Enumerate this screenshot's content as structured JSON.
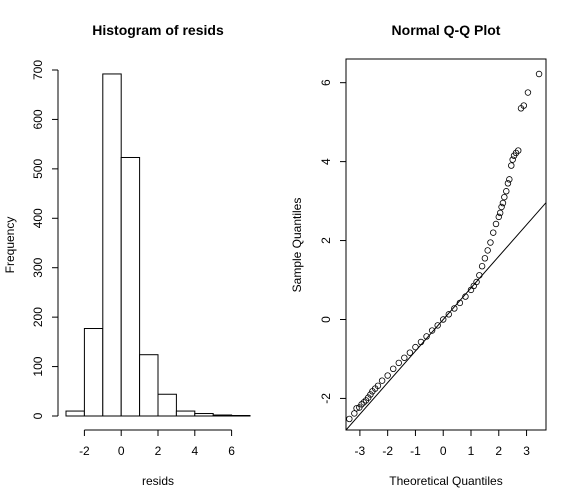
{
  "chart_data": [
    {
      "type": "histogram",
      "title": "Histogram of resids",
      "xlabel": "resids",
      "ylabel": "Frequency",
      "xlim": [
        -3,
        7
      ],
      "ylim": [
        0,
        700
      ],
      "xticks": [
        -2,
        0,
        2,
        4,
        6
      ],
      "yticks": [
        0,
        100,
        200,
        300,
        400,
        500,
        600,
        700
      ],
      "bins": [
        {
          "start": -3,
          "end": -2,
          "count": 10
        },
        {
          "start": -2,
          "end": -1,
          "count": 177
        },
        {
          "start": -1,
          "end": 0,
          "count": 692
        },
        {
          "start": 0,
          "end": 1,
          "count": 523
        },
        {
          "start": 1,
          "end": 2,
          "count": 124
        },
        {
          "start": 2,
          "end": 3,
          "count": 44
        },
        {
          "start": 3,
          "end": 4,
          "count": 10
        },
        {
          "start": 4,
          "end": 5,
          "count": 5
        },
        {
          "start": 5,
          "end": 6,
          "count": 2
        },
        {
          "start": 6,
          "end": 7,
          "count": 1
        }
      ],
      "grid": false
    },
    {
      "type": "scatter",
      "title": "Normal Q-Q Plot",
      "xlabel": "Theoretical Quantiles",
      "ylabel": "Sample Quantiles",
      "xlim": [
        -3.5,
        3.7
      ],
      "ylim": [
        -2.8,
        6.6
      ],
      "xticks": [
        -3,
        -2,
        -1,
        0,
        1,
        2,
        3
      ],
      "yticks": [
        -2,
        0,
        2,
        4,
        6
      ],
      "reference_line": {
        "intercept": 0.0,
        "slope": 0.8
      },
      "points": [
        [
          -3.38,
          -2.52
        ],
        [
          -3.2,
          -2.38
        ],
        [
          -3.12,
          -2.25
        ],
        [
          -3.02,
          -2.23
        ],
        [
          -2.94,
          -2.15
        ],
        [
          -2.86,
          -2.1
        ],
        [
          -2.78,
          -2.05
        ],
        [
          -2.7,
          -1.98
        ],
        [
          -2.62,
          -1.9
        ],
        [
          -2.55,
          -1.82
        ],
        [
          -2.45,
          -1.75
        ],
        [
          -2.35,
          -1.68
        ],
        [
          -2.2,
          -1.55
        ],
        [
          -2.0,
          -1.42
        ],
        [
          -1.8,
          -1.25
        ],
        [
          -1.6,
          -1.1
        ],
        [
          -1.4,
          -0.97
        ],
        [
          -1.2,
          -0.84
        ],
        [
          -1.0,
          -0.7
        ],
        [
          -0.8,
          -0.57
        ],
        [
          -0.6,
          -0.43
        ],
        [
          -0.4,
          -0.28
        ],
        [
          -0.2,
          -0.15
        ],
        [
          0.0,
          0.0
        ],
        [
          0.2,
          0.13
        ],
        [
          0.4,
          0.28
        ],
        [
          0.6,
          0.42
        ],
        [
          0.8,
          0.58
        ],
        [
          1.0,
          0.75
        ],
        [
          1.1,
          0.85
        ],
        [
          1.2,
          0.95
        ],
        [
          1.3,
          1.12
        ],
        [
          1.4,
          1.35
        ],
        [
          1.5,
          1.55
        ],
        [
          1.6,
          1.75
        ],
        [
          1.7,
          1.95
        ],
        [
          1.8,
          2.2
        ],
        [
          1.9,
          2.42
        ],
        [
          2.0,
          2.6
        ],
        [
          2.05,
          2.7
        ],
        [
          2.1,
          2.85
        ],
        [
          2.15,
          2.95
        ],
        [
          2.2,
          3.1
        ],
        [
          2.27,
          3.25
        ],
        [
          2.33,
          3.45
        ],
        [
          2.38,
          3.55
        ],
        [
          2.45,
          3.9
        ],
        [
          2.5,
          4.05
        ],
        [
          2.55,
          4.15
        ],
        [
          2.62,
          4.22
        ],
        [
          2.7,
          4.28
        ],
        [
          2.8,
          5.35
        ],
        [
          2.9,
          5.42
        ],
        [
          3.05,
          5.75
        ],
        [
          3.45,
          6.22
        ]
      ],
      "grid": false
    }
  ]
}
